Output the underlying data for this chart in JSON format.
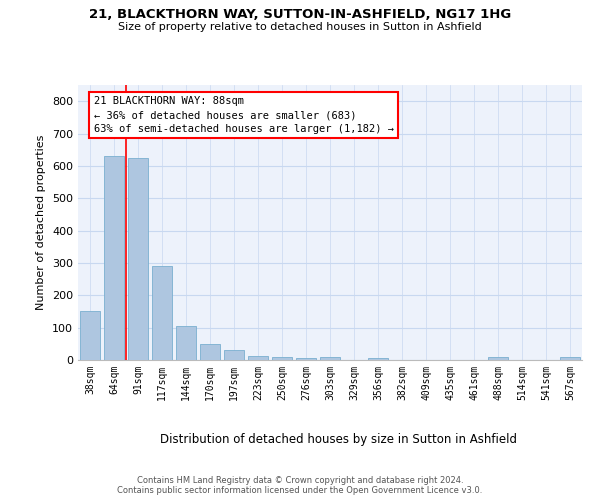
{
  "title1": "21, BLACKTHORN WAY, SUTTON-IN-ASHFIELD, NG17 1HG",
  "title2": "Size of property relative to detached houses in Sutton in Ashfield",
  "xlabel": "Distribution of detached houses by size in Sutton in Ashfield",
  "ylabel": "Number of detached properties",
  "bar_labels": [
    "38sqm",
    "64sqm",
    "91sqm",
    "117sqm",
    "144sqm",
    "170sqm",
    "197sqm",
    "223sqm",
    "250sqm",
    "276sqm",
    "303sqm",
    "329sqm",
    "356sqm",
    "382sqm",
    "409sqm",
    "435sqm",
    "461sqm",
    "488sqm",
    "514sqm",
    "541sqm",
    "567sqm"
  ],
  "bar_values": [
    150,
    632,
    625,
    290,
    105,
    48,
    32,
    12,
    10,
    7,
    8,
    0,
    5,
    0,
    0,
    0,
    0,
    8,
    0,
    0,
    8
  ],
  "bar_color": "#aec6e0",
  "bar_edge_color": "#7aafd0",
  "annotation_text": "21 BLACKTHORN WAY: 88sqm\n← 36% of detached houses are smaller (683)\n63% of semi-detached houses are larger (1,182) →",
  "bg_color": "#edf2fb",
  "grid_color": "#c8d8f0",
  "footnote": "Contains HM Land Registry data © Crown copyright and database right 2024.\nContains public sector information licensed under the Open Government Licence v3.0.",
  "ylim": [
    0,
    850
  ],
  "yticks": [
    0,
    100,
    200,
    300,
    400,
    500,
    600,
    700,
    800
  ]
}
